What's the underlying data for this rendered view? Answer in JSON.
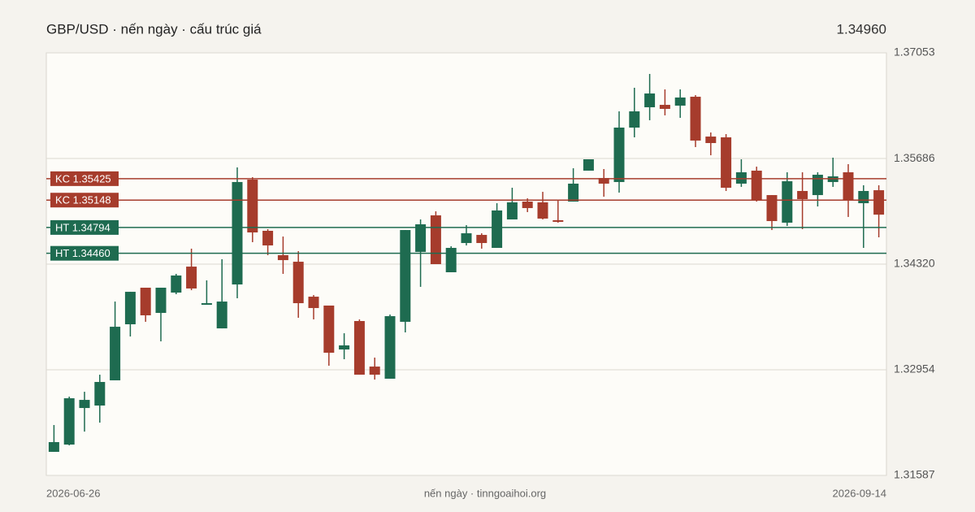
{
  "chart_data": {
    "type": "candlestick",
    "title": "GBP/USD · nến ngày · cấu trúc giá",
    "last_price": {
      "value": 1.3496,
      "label": "1.34960"
    },
    "last_price_color": "#a63c2c",
    "source": "nến ngày · tinngoaihoi.org",
    "up_color": "#1e6b50",
    "down_color": "#a63c2c",
    "grid": true,
    "ylim": [
      1.31587,
      1.37053
    ],
    "yticks": [
      1.31587,
      1.32954,
      {
        "value": 1.3432,
        "label": "1.34320"
      },
      1.35686,
      1.37053
    ],
    "categories": [
      "2026-06-26",
      null,
      null,
      null,
      null,
      null,
      null,
      null,
      null,
      null,
      null,
      null,
      null,
      null,
      null,
      null,
      null,
      null,
      null,
      null,
      null,
      null,
      null,
      null,
      null,
      null,
      null,
      null,
      null,
      null,
      null,
      null,
      null,
      null,
      null,
      null,
      null,
      null,
      null,
      null,
      null,
      null,
      null,
      null,
      null,
      null,
      null,
      null,
      null,
      null,
      null,
      null,
      null,
      null,
      "2026-09-14"
    ],
    "open": [
      1.31892,
      1.31986,
      1.32459,
      1.32491,
      1.32817,
      1.33542,
      1.34015,
      1.33689,
      1.33952,
      1.34288,
      1.33794,
      1.33489,
      1.34057,
      1.35413,
      1.34751,
      1.34436,
      1.34351,
      1.33899,
      1.33784,
      1.33216,
      1.33584,
      1.32995,
      1.32838,
      1.33574,
      1.34478,
      1.34951,
      1.34215,
      1.34593,
      1.34698,
      1.3453,
      1.34898,
      1.35129,
      1.35119,
      1.34888,
      1.35129,
      1.35529,
      1.35434,
      1.35382,
      1.36086,
      1.36349,
      1.3638,
      1.3637,
      1.36485,
      1.3597,
      1.3596,
      1.35361,
      1.35529,
      1.35213,
      1.34856,
      1.35266,
      1.35213,
      1.35382,
      1.35508,
      1.35108,
      1.35276
    ],
    "high": [
      1.32239,
      1.32606,
      1.32669,
      1.3289,
      1.33836,
      1.33962,
      1.34015,
      1.34015,
      1.34194,
      1.3452,
      1.3411,
      1.34383,
      1.35571,
      1.35445,
      1.34772,
      1.34677,
      1.34488,
      1.3392,
      1.33784,
      1.33426,
      1.33605,
      1.33111,
      1.33668,
      1.34761,
      1.34898,
      1.35003,
      1.34551,
      1.34824,
      1.34719,
      1.35108,
      1.35308,
      1.35171,
      1.35255,
      1.3515,
      1.3556,
      1.35676,
      1.3555,
      1.36296,
      1.36601,
      1.3678,
      1.3658,
      1.3658,
      1.36506,
      1.36023,
      1.36002,
      1.35676,
      1.35581,
      1.35213,
      1.35508,
      1.35508,
      1.35508,
      1.35697,
      1.35613,
      1.3534,
      1.3534
    ],
    "low": [
      1.31892,
      1.31976,
      1.32154,
      1.3227,
      1.32817,
      1.33384,
      1.33574,
      1.33321,
      1.33931,
      1.33983,
      1.33794,
      1.33489,
      1.33878,
      1.34604,
      1.34436,
      1.34194,
      1.33626,
      1.33605,
      1.33006,
      1.3309,
      1.3289,
      1.32827,
      1.32838,
      1.33437,
      1.34026,
      1.3432,
      1.34215,
      1.34562,
      1.3452,
      1.3453,
      1.34898,
      1.34993,
      1.34898,
      1.34856,
      1.35129,
      1.35529,
      1.35192,
      1.35245,
      1.3596,
      1.36181,
      1.36244,
      1.36212,
      1.35834,
      1.35728,
      1.35266,
      1.35319,
      1.35129,
      1.34761,
      1.34814,
      1.34772,
      1.35066,
      1.35319,
      1.3493,
      1.3453,
      1.34667
    ],
    "close": [
      1.32018,
      1.32585,
      1.32564,
      1.32796,
      1.3351,
      1.33962,
      1.33658,
      1.34015,
      1.34173,
      1.34005,
      1.33815,
      1.33836,
      1.35382,
      1.3473,
      1.34562,
      1.34372,
      1.33815,
      1.33752,
      1.33174,
      1.33269,
      1.3289,
      1.3289,
      1.33647,
      1.34761,
      1.34835,
      1.3432,
      1.3453,
      1.34719,
      1.34593,
      1.35014,
      1.35119,
      1.35045,
      1.34909,
      1.34867,
      1.35361,
      1.35676,
      1.35361,
      1.36086,
      1.36296,
      1.36527,
      1.36328,
      1.36475,
      1.35918,
      1.35886,
      1.35308,
      1.35508,
      1.3515,
      1.34877,
      1.35392,
      1.35161,
      1.35476,
      1.35455,
      1.3515,
      1.35266,
      1.3496
    ],
    "levels": [
      {
        "label": "KC 1.35425",
        "value": 1.35425,
        "color": "#a63c2c"
      },
      {
        "label": "KC 1.35148",
        "value": 1.35148,
        "color": "#a63c2c"
      },
      {
        "label": "HT 1.34794",
        "value": 1.34794,
        "color": "#1e6b50"
      },
      {
        "label": "HT 1.34460",
        "value": 1.3446,
        "color": "#1e6b50"
      }
    ]
  }
}
